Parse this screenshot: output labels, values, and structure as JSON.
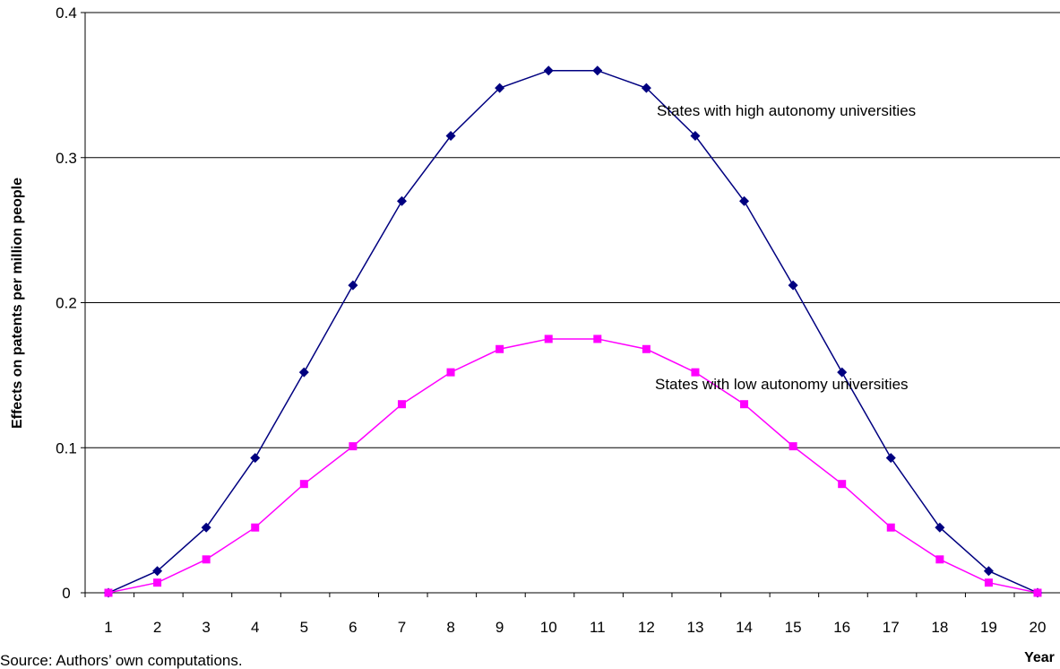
{
  "chart_data": {
    "type": "line",
    "title": "",
    "xlabel": "Year",
    "ylabel": "Effects on patents per million people",
    "x": [
      1,
      2,
      3,
      4,
      5,
      6,
      7,
      8,
      9,
      10,
      11,
      12,
      13,
      14,
      15,
      16,
      17,
      18,
      19,
      20
    ],
    "xticks": [
      "1",
      "2",
      "3",
      "4",
      "5",
      "6",
      "7",
      "8",
      "9",
      "10",
      "11",
      "12",
      "13",
      "14",
      "15",
      "16",
      "17",
      "18",
      "19",
      "20"
    ],
    "yticks": [
      "0",
      "0.1",
      "0.2",
      "0.3",
      "0.4"
    ],
    "ylim": [
      0,
      0.4
    ],
    "grid": "horizontal",
    "legend": "none",
    "series": [
      {
        "name": "States with high autonomy universities",
        "color": "#000080",
        "marker": "diamond",
        "values": [
          0,
          0.015,
          0.045,
          0.093,
          0.152,
          0.212,
          0.27,
          0.315,
          0.348,
          0.36,
          0.36,
          0.348,
          0.315,
          0.27,
          0.212,
          0.152,
          0.093,
          0.045,
          0.015,
          0
        ]
      },
      {
        "name": "States with low autonomy universities",
        "color": "#ff00ff",
        "marker": "square",
        "values": [
          0,
          0.007,
          0.023,
          0.045,
          0.075,
          0.101,
          0.13,
          0.152,
          0.168,
          0.175,
          0.175,
          0.168,
          0.152,
          0.13,
          0.101,
          0.075,
          0.045,
          0.023,
          0.007,
          0
        ]
      }
    ],
    "annotations": [
      "States with high autonomy universities",
      "States with low autonomy universities"
    ]
  },
  "source_note": "Source: Authors’ own computations."
}
